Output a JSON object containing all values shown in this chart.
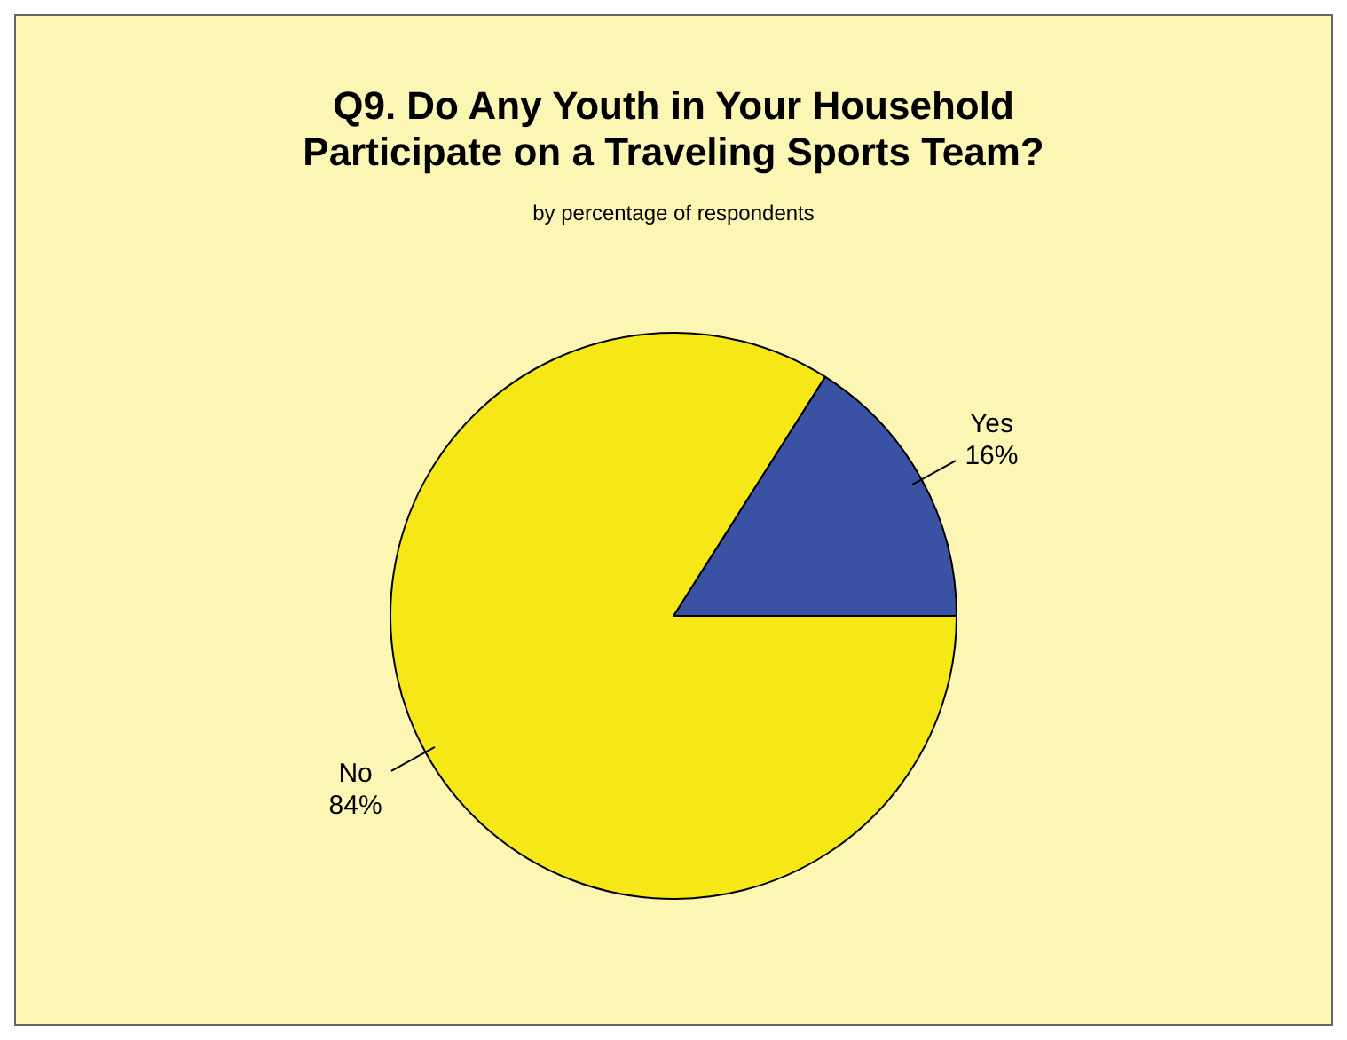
{
  "chart_data": {
    "type": "pie",
    "title": "Q9.  Do Any Youth in Your Household Participate on a Traveling Sports Team?",
    "subtitle": "by percentage of respondents",
    "categories": [
      "Yes",
      "No"
    ],
    "values": [
      16,
      84
    ],
    "colors": [
      "#3a52a4",
      "#f5e816"
    ],
    "value_labels": [
      "16%",
      "84%"
    ],
    "legend": false
  }
}
